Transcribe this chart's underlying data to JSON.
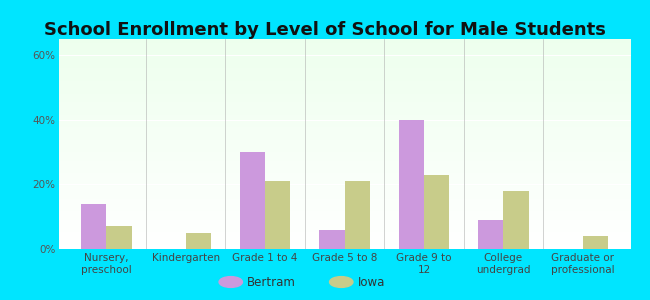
{
  "title": "School Enrollment by Level of School for Male Students",
  "categories": [
    "Nursery,\npreschool",
    "Kindergarten",
    "Grade 1 to 4",
    "Grade 5 to 8",
    "Grade 9 to\n12",
    "College\nundergrad",
    "Graduate or\nprofessional"
  ],
  "bertram_values": [
    14,
    0,
    30,
    6,
    40,
    9,
    0
  ],
  "iowa_values": [
    7,
    5,
    21,
    21,
    23,
    18,
    4
  ],
  "bertram_color": "#cc99dd",
  "iowa_color": "#c8cc8a",
  "ylim": [
    0,
    65
  ],
  "yticks": [
    0,
    20,
    40,
    60
  ],
  "ytick_labels": [
    "0%",
    "20%",
    "40%",
    "60%"
  ],
  "background_color": "#00e5ff",
  "title_fontsize": 13,
  "legend_labels": [
    "Bertram",
    "Iowa"
  ],
  "bar_width": 0.32,
  "tick_label_fontsize": 7.5,
  "ytick_label_fontsize": 7.5
}
